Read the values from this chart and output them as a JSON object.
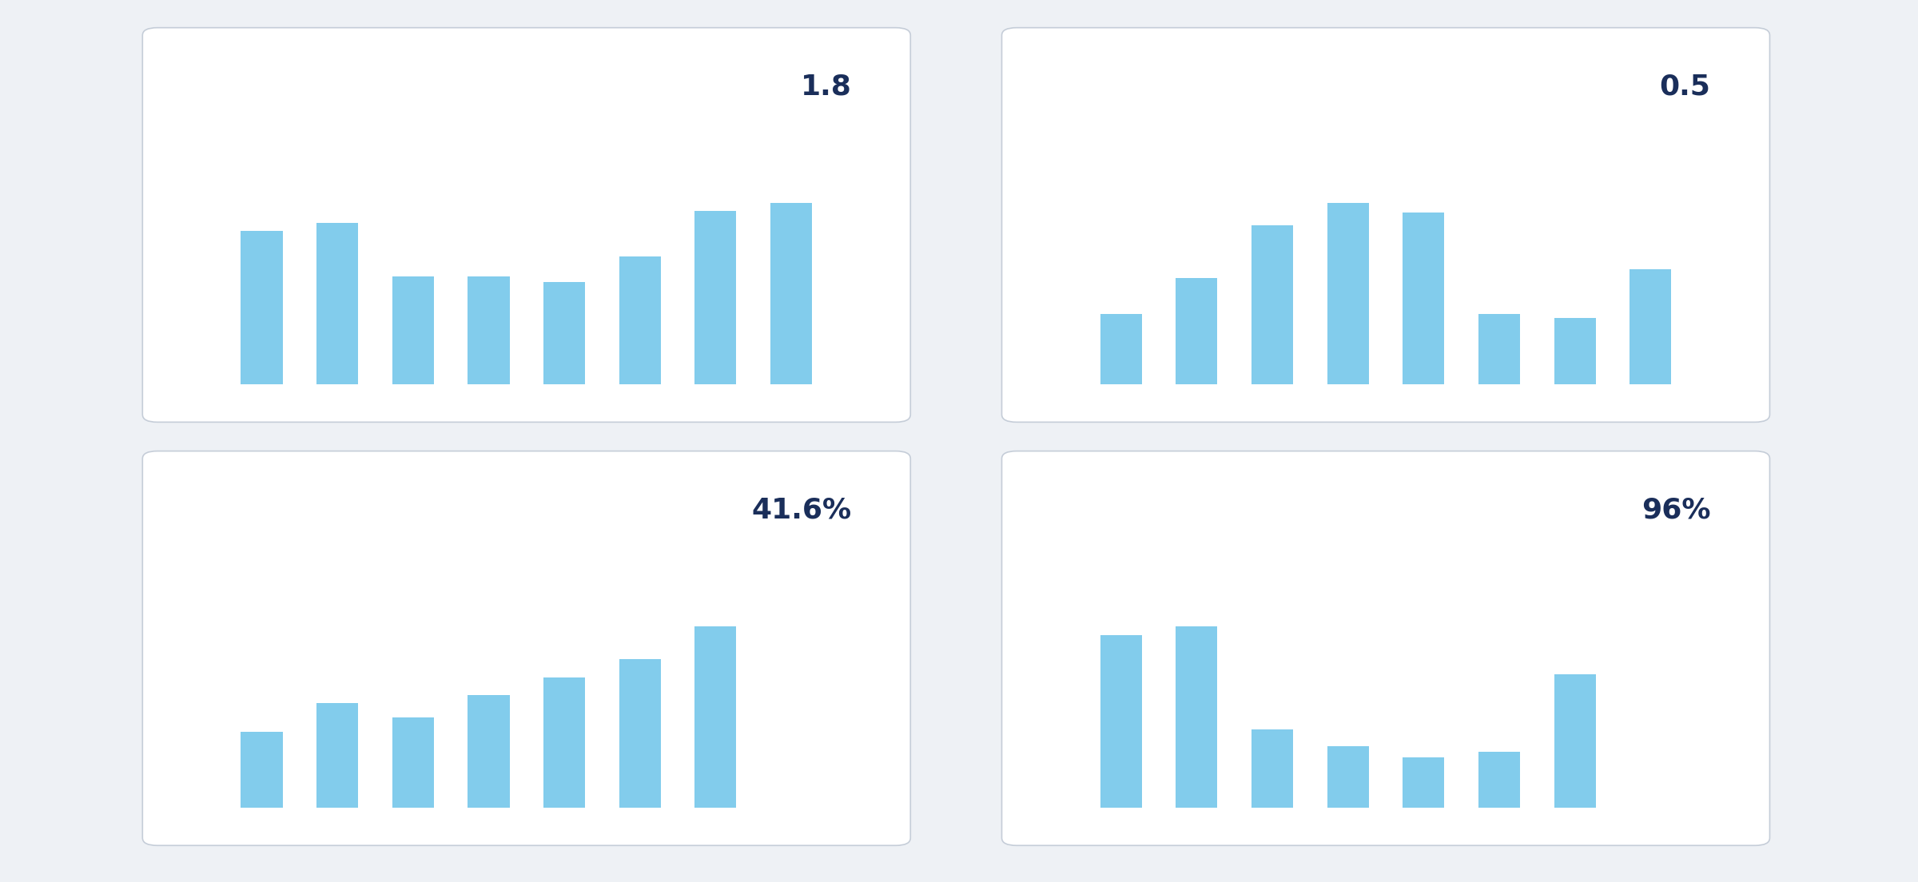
{
  "background_color": "#eef1f5",
  "panel_bg": "#ffffff",
  "panel_border": "#c5cdd8",
  "bar_color": "#82ccec",
  "label_color": "#1a2e5a",
  "panels": [
    {
      "label": "1.8",
      "bars": [
        0.78,
        0.82,
        0.55,
        0.55,
        0.52,
        0.65,
        0.88,
        0.92
      ]
    },
    {
      "label": "0.5",
      "bars": [
        0.32,
        0.48,
        0.72,
        0.82,
        0.78,
        0.32,
        0.3,
        0.52
      ]
    },
    {
      "label": "41.6%",
      "bars": [
        0.42,
        0.58,
        0.5,
        0.62,
        0.72,
        0.82,
        1.0,
        0.0
      ]
    },
    {
      "label": "96%",
      "bars": [
        0.62,
        0.65,
        0.28,
        0.22,
        0.18,
        0.2,
        0.48,
        0.0
      ]
    }
  ],
  "label_fontsize": 26,
  "figure_width": 24.0,
  "figure_height": 11.04
}
